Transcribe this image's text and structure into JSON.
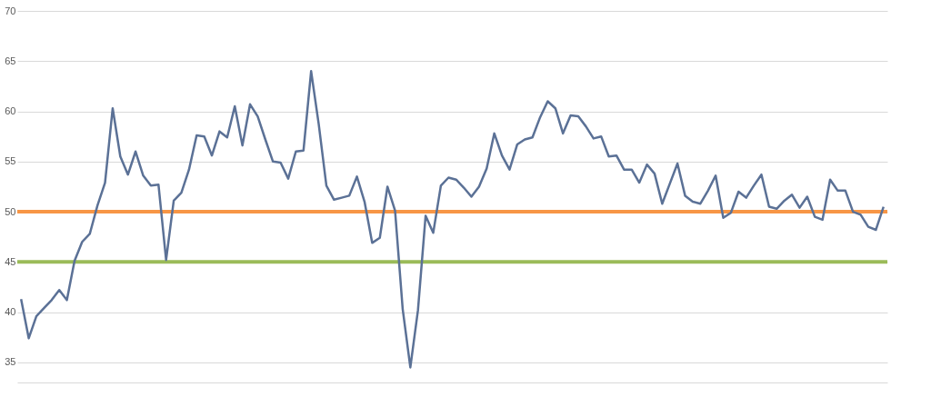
{
  "chart_data": {
    "type": "line",
    "categories": [
      null,
      null,
      null,
      null,
      null,
      null,
      null,
      null,
      null,
      null,
      null,
      null,
      null,
      null,
      null,
      null,
      null,
      null,
      null,
      null,
      null,
      null,
      null,
      null,
      null,
      null,
      null,
      null,
      null,
      null,
      null,
      null,
      null,
      null,
      null,
      null,
      null,
      null,
      null,
      null,
      null,
      null,
      null,
      null,
      null,
      null,
      null,
      null,
      null,
      null,
      null,
      null,
      null,
      null,
      null,
      null,
      null,
      null,
      null,
      null,
      null,
      null,
      null,
      null,
      null,
      null,
      null,
      null,
      null,
      null,
      null,
      null,
      null,
      null,
      null,
      null,
      null,
      null,
      null,
      null,
      null,
      null,
      null,
      null,
      null,
      null,
      null,
      null,
      null,
      null,
      null,
      null,
      null,
      null,
      null,
      null,
      null,
      null,
      null,
      null,
      null,
      null,
      null,
      null,
      null,
      null,
      null,
      null,
      null,
      null,
      null,
      null,
      null,
      null
    ],
    "series": [
      {
        "color": "#5b7196",
        "values": [
          41.3,
          37.4,
          39.6,
          40.4,
          41.2,
          42.2,
          41.2,
          45.1,
          47,
          47.8,
          50.6,
          52.9,
          60.3,
          55.5,
          53.7,
          56,
          53.6,
          52.6,
          52.7,
          45.2,
          51.1,
          51.9,
          54.2,
          57.6,
          57.5,
          55.6,
          58,
          57.4,
          60.5,
          56.6,
          60.7,
          59.5,
          57.2,
          55,
          54.9,
          53.3,
          56,
          56.1,
          64,
          58.7,
          52.6,
          51.2,
          51.4,
          51.6,
          53.5,
          51,
          46.9,
          47.4,
          52.5,
          50.1,
          40.3,
          34.5,
          40.2,
          49.6,
          47.9,
          52.6,
          53.4,
          53.2,
          52.4,
          51.5,
          52.5,
          54.3,
          57.8,
          55.6,
          54.2,
          56.7,
          57.2,
          57.4,
          59.4,
          61,
          60.3,
          57.8,
          59.6,
          59.5,
          58.5,
          57.3,
          57.5,
          55.5,
          55.6,
          54.2,
          54.2,
          52.9,
          54.7,
          53.8,
          50.8,
          52.8,
          54.8,
          51.6,
          51,
          50.8,
          52.1,
          53.6,
          49.4,
          49.9,
          52,
          51.4,
          52.6,
          53.7,
          50.5,
          50.3,
          51.1,
          51.7,
          50.4,
          51.5,
          49.5,
          49.2,
          53.2,
          52.1,
          52.1,
          50,
          49.7,
          48.5,
          48.2,
          50.5
        ]
      }
    ],
    "ylim": [
      33,
      70
    ],
    "yticks": [
      35,
      40,
      45,
      50,
      55,
      60,
      65,
      70
    ],
    "grid": "y",
    "tick_labels": "y",
    "ref_lines": [
      {
        "axis": "y",
        "value": 50,
        "color": "#f79646"
      },
      {
        "axis": "y",
        "value": 45,
        "color": "#9bbb59"
      }
    ]
  }
}
